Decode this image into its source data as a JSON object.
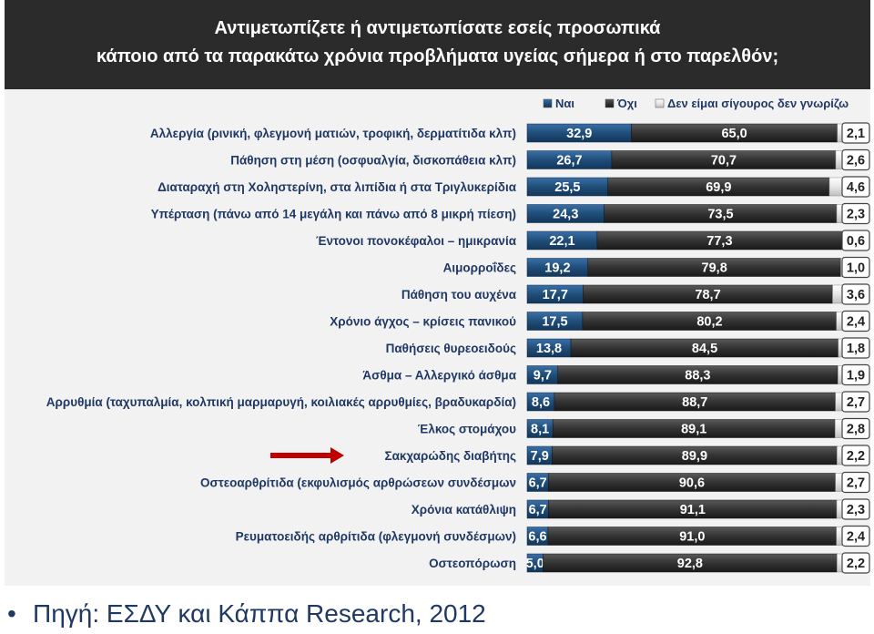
{
  "title": {
    "line1": "Αντιμετωπίζετε ή αντιμετωπίσατε εσείς προσωπικά",
    "line2": "κάποιο από τα παρακάτω χρόνια προβλήματα υγείας σήμερα ή στο παρελθόν;"
  },
  "source": "Πηγή: ΕΣΔΥ και Κάππα Research, 2012",
  "chart_data": {
    "type": "bar",
    "orientation": "horizontal",
    "stacked": true,
    "title": "Αντιμετωπίζετε ή αντιμετωπίσατε εσείς προσωπικά κάποιο από τα παρακάτω χρόνια προβλήματα υγείας σήμερα ή στο παρελθόν;",
    "legend_position": "top-right",
    "grid": false,
    "xlim": [
      0,
      100
    ],
    "categories": [
      "Αλλεργία (ρινική, φλεγμονή ματιών, τροφική, δερματίτιδα κλπ)",
      "Πάθηση στη μέση (οσφυαλγία, δισκοπάθεια κλπ)",
      "Διαταραχή στη Χοληστερίνη, στα λιπίδια ή στα Τριγλυκερίδια",
      "Υπέρταση (πάνω από 14 μεγάλη και πάνω από 8 μικρή πίεση)",
      "Έντονοι πονοκέφαλοι – ημικρανία",
      "Αιμορροΐδες",
      "Πάθηση του αυχένα",
      "Χρόνιο άγχος – κρίσεις πανικού",
      "Παθήσεις θυρεοειδούς",
      "Άσθμα – Αλλεργικό άσθμα",
      "Αρρυθμία (ταχυπαλμία, κολπική μαρμαρυγή, κοιλιακές αρρυθμίες, βραδυκαρδία)",
      "Έλκος στομάχου",
      "Σακχαρώδης διαβήτης",
      "Οστεοαρθρίτιδα (εκφυλισμός αρθρώσεων συνδέσμων",
      "Χρόνια κατάθλιψη",
      "Ρευματοειδής αρθρίτιδα (φλεγμονή συνδέσμων)",
      "Οστεοπόρωση"
    ],
    "series": [
      {
        "name": "Ναι",
        "color": "#1f4e79",
        "values": [
          32.9,
          26.7,
          25.5,
          24.3,
          22.1,
          19.2,
          17.7,
          17.5,
          13.8,
          9.7,
          8.6,
          8.1,
          7.9,
          6.7,
          6.7,
          6.6,
          5.0
        ]
      },
      {
        "name": "Όχι",
        "color": "#333333",
        "values": [
          65.0,
          70.7,
          69.9,
          73.5,
          77.3,
          79.8,
          78.7,
          80.2,
          84.5,
          88.3,
          88.7,
          89.1,
          89.9,
          90.6,
          91.1,
          91.0,
          92.8
        ]
      },
      {
        "name": "Δεν είμαι σίγουρος δεν γνωρίζω",
        "color": "#d9d9d9",
        "values": [
          2.1,
          2.6,
          4.6,
          2.3,
          0.6,
          1.0,
          3.6,
          2.4,
          1.8,
          1.9,
          2.7,
          2.8,
          2.2,
          2.7,
          2.3,
          2.4,
          2.2
        ]
      }
    ],
    "value_labels": [
      [
        "32,9",
        "65,0",
        "2,1"
      ],
      [
        "26,7",
        "70,7",
        "2,6"
      ],
      [
        "25,5",
        "69,9",
        "4,6"
      ],
      [
        "24,3",
        "73,5",
        "2,3"
      ],
      [
        "22,1",
        "77,3",
        "0,6"
      ],
      [
        "19,2",
        "79,8",
        "1,0"
      ],
      [
        "17,7",
        "78,7",
        "3,6"
      ],
      [
        "17,5",
        "80,2",
        "2,4"
      ],
      [
        "13,8",
        "84,5",
        "1,8"
      ],
      [
        "9,7",
        "88,3",
        "1,9"
      ],
      [
        "8,6",
        "88,7",
        "2,7"
      ],
      [
        "8,1",
        "89,1",
        "2,8"
      ],
      [
        "7,9",
        "89,9",
        "2,2"
      ],
      [
        "6,7",
        "90,6",
        "2,7"
      ],
      [
        "6,7",
        "91,1",
        "2,3"
      ],
      [
        "6,6",
        "91,0",
        "2,4"
      ],
      [
        "5,0",
        "92,8",
        "2,2"
      ]
    ],
    "highlighted_category": "Σακχαρώδης διαβήτης",
    "highlight_color": "#c00000"
  }
}
